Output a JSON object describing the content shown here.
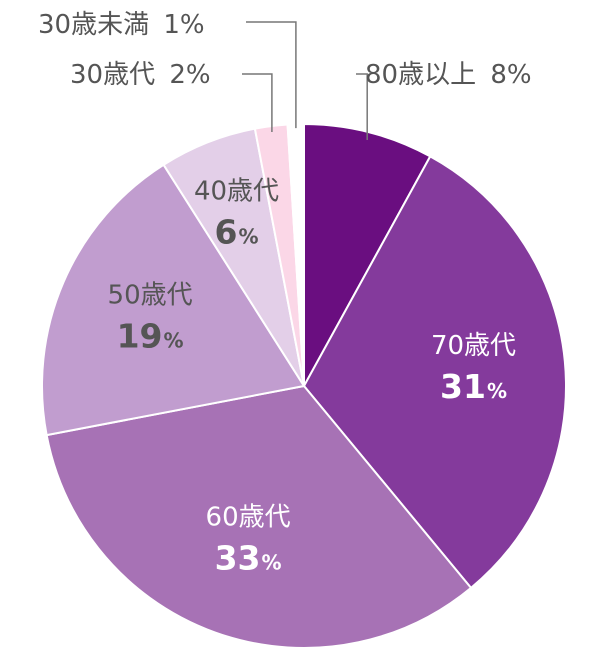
{
  "chart_data": {
    "type": "pie",
    "title": "",
    "start": "top",
    "direction": "clockwise",
    "slices": [
      {
        "label": "80歳以上",
        "value": 8,
        "value_text": "8%",
        "color": "#6a0e80",
        "label_placement": "outside"
      },
      {
        "label": "70歳代",
        "value": 31,
        "value_num": "31",
        "value_unit": "%",
        "color": "#843a9c",
        "label_color": "#ffffff",
        "label_placement": "inside"
      },
      {
        "label": "60歳代",
        "value": 33,
        "value_num": "33",
        "value_unit": "%",
        "color": "#a772b5",
        "label_color": "#ffffff",
        "label_placement": "inside"
      },
      {
        "label": "50歳代",
        "value": 19,
        "value_num": "19",
        "value_unit": "%",
        "color": "#c19dcf",
        "label_color": "#555555",
        "label_placement": "inside"
      },
      {
        "label": "40歳代",
        "value": 6,
        "value_num": "6",
        "value_unit": "%",
        "color": "#e3cfe8",
        "label_color": "#555555",
        "label_placement": "inside"
      },
      {
        "label": "30歳代",
        "value": 2,
        "value_text": "2%",
        "color": "#fbd7e7",
        "label_placement": "outside"
      },
      {
        "label": "30歳未満",
        "value": 1,
        "value_text": "1%",
        "color": "#ffffff",
        "label_placement": "outside"
      }
    ]
  }
}
